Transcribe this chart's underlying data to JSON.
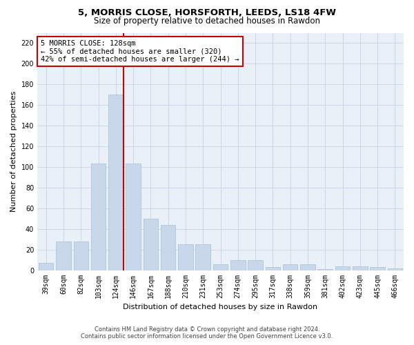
{
  "title_line1": "5, MORRIS CLOSE, HORSFORTH, LEEDS, LS18 4FW",
  "title_line2": "Size of property relative to detached houses in Rawdon",
  "xlabel": "Distribution of detached houses by size in Rawdon",
  "ylabel": "Number of detached properties",
  "categories": [
    "39sqm",
    "60sqm",
    "82sqm",
    "103sqm",
    "124sqm",
    "146sqm",
    "167sqm",
    "188sqm",
    "210sqm",
    "231sqm",
    "253sqm",
    "274sqm",
    "295sqm",
    "317sqm",
    "338sqm",
    "359sqm",
    "381sqm",
    "402sqm",
    "423sqm",
    "445sqm",
    "466sqm"
  ],
  "values": [
    7,
    28,
    28,
    103,
    170,
    103,
    50,
    44,
    25,
    25,
    6,
    10,
    10,
    3,
    6,
    6,
    1,
    4,
    4,
    3,
    2
  ],
  "bar_color": "#c8d8ea",
  "bar_edgecolor": "#a8c0d8",
  "vline_color": "#cc0000",
  "vline_x_index": 4,
  "annotation_text": "5 MORRIS CLOSE: 128sqm\n← 55% of detached houses are smaller (320)\n42% of semi-detached houses are larger (244) →",
  "annotation_box_facecolor": "#ffffff",
  "annotation_box_edgecolor": "#cc0000",
  "ylim": [
    0,
    230
  ],
  "yticks": [
    0,
    20,
    40,
    60,
    80,
    100,
    120,
    140,
    160,
    180,
    200,
    220
  ],
  "grid_color": "#ccd8e8",
  "background_color": "#eaf0f8",
  "footer_line1": "Contains HM Land Registry data © Crown copyright and database right 2024.",
  "footer_line2": "Contains public sector information licensed under the Open Government Licence v3.0.",
  "title1_fontsize": 9.5,
  "title2_fontsize": 8.5,
  "xlabel_fontsize": 8,
  "ylabel_fontsize": 8,
  "tick_fontsize": 7,
  "annot_fontsize": 7.5,
  "footer_fontsize": 6
}
